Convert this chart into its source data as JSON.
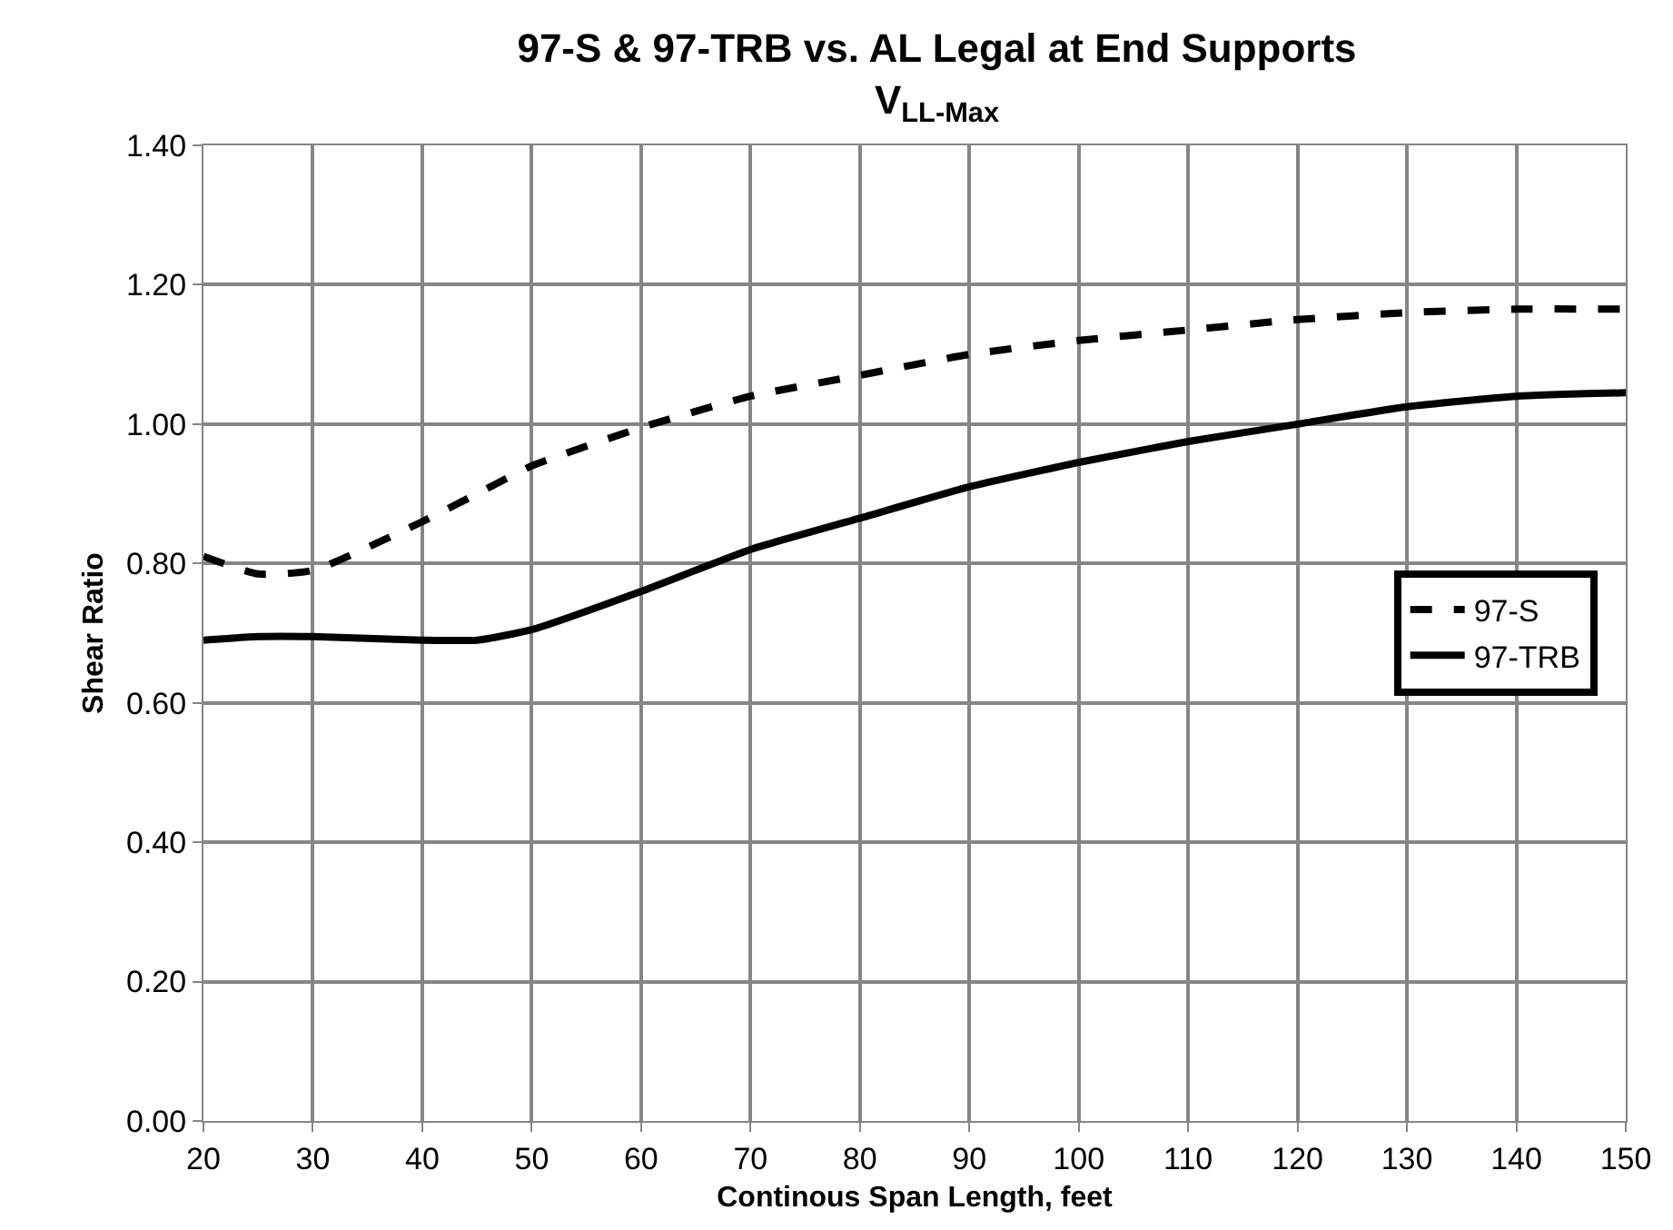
{
  "chart_data": {
    "type": "line",
    "title": "97-S & 97-TRB vs. AL Legal at End Supports",
    "subtitle": "V$_{LL-Max}$",
    "xlabel": "Continous Span Length, feet",
    "ylabel": "Shear Ratio",
    "x": [
      20,
      25,
      30,
      40,
      45,
      50,
      60,
      70,
      80,
      90,
      100,
      110,
      120,
      130,
      140,
      150
    ],
    "series": [
      {
        "name": "97-S",
        "color": "#000000",
        "line_style": "dashed",
        "values": [
          0.81,
          0.785,
          0.79,
          0.86,
          0.9,
          0.94,
          0.995,
          1.04,
          1.07,
          1.1,
          1.12,
          1.135,
          1.15,
          1.16,
          1.165,
          1.165
        ]
      },
      {
        "name": "97-TRB",
        "color": "#000000",
        "line_style": "solid",
        "values": [
          0.69,
          0.695,
          0.695,
          0.69,
          0.69,
          0.705,
          0.76,
          0.82,
          0.865,
          0.91,
          0.945,
          0.975,
          1.0,
          1.025,
          1.04,
          1.045
        ]
      }
    ],
    "xlim": [
      20,
      150
    ],
    "xticks": [
      20,
      30,
      40,
      50,
      60,
      70,
      80,
      90,
      100,
      110,
      120,
      130,
      140,
      150
    ],
    "ylim": [
      0,
      1.4
    ],
    "yticks": [
      {
        "value": 0,
        "label": "0.00"
      },
      {
        "value": 0.2,
        "label": "0.20"
      },
      {
        "value": 0.4,
        "label": "0.40"
      },
      {
        "value": 0.6,
        "label": "0.60"
      },
      {
        "value": 0.8,
        "label": "0.80"
      },
      {
        "value": 1.0,
        "label": "1.00"
      },
      {
        "value": 1.2,
        "label": "1.20"
      },
      {
        "value": 1.4,
        "label": "1.40"
      }
    ],
    "grid": true,
    "legend": "right",
    "marker": "none"
  }
}
